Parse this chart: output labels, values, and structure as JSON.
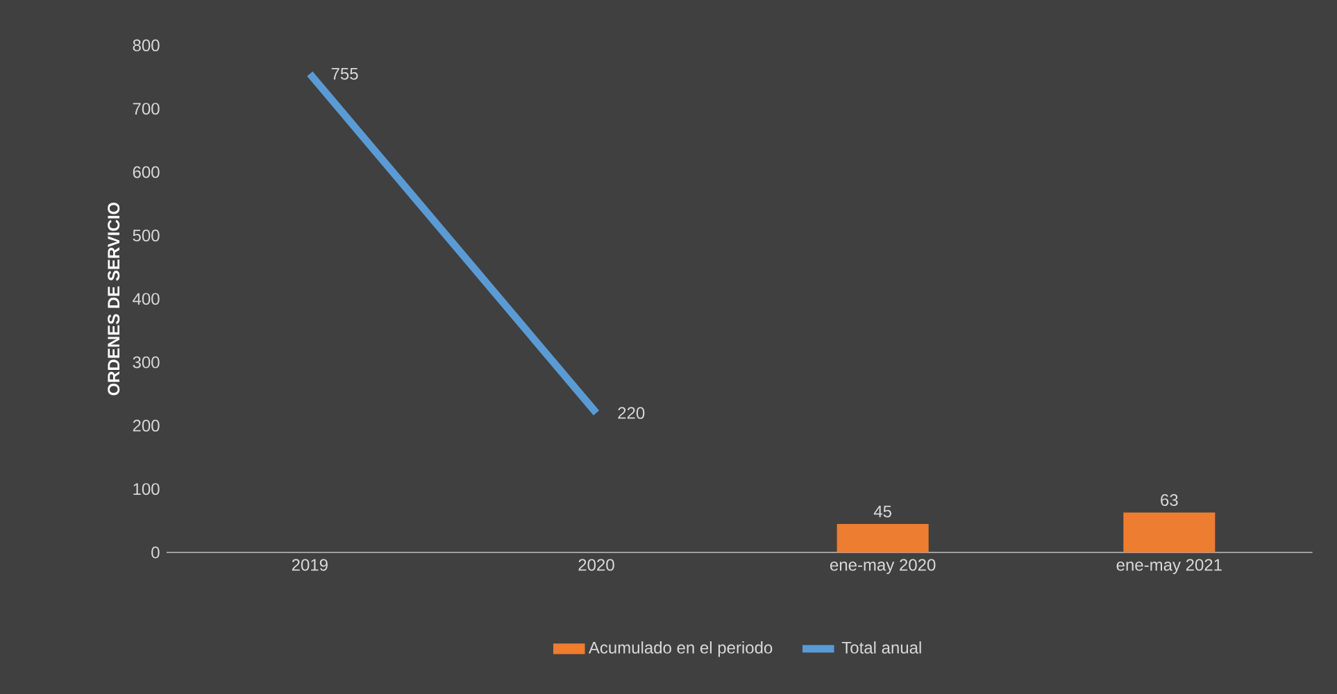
{
  "chart_data": {
    "type": "bar",
    "ylabel": "ORDENES DE SERVICIO",
    "categories": [
      "2019",
      "2020",
      "ene-may 2020",
      "ene-may 2021"
    ],
    "series": [
      {
        "name": "Acumulado en el periodo",
        "color": "#ed7d31",
        "values": [
          null,
          null,
          45,
          63
        ]
      },
      {
        "name": "Total anual",
        "type": "line",
        "color": "#5b9bd5",
        "values": [
          755,
          220,
          null,
          null
        ]
      }
    ],
    "ylim": [
      0,
      800
    ],
    "yticks": [
      0,
      100,
      200,
      300,
      400,
      500,
      600,
      700,
      800
    ],
    "data_labels": true,
    "legend": "bottom",
    "grid": false,
    "marker": "none"
  }
}
